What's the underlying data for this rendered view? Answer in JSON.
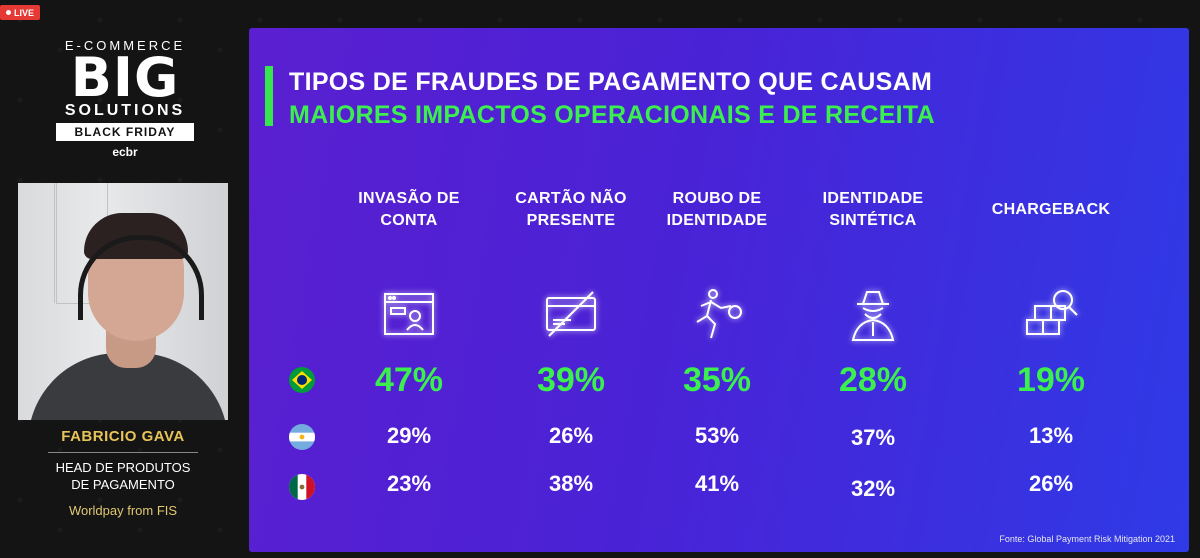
{
  "live_badge": "LIVE",
  "logo": {
    "line1": "E-COMMERCE",
    "line2": "BIG",
    "line3": "SOLUTIONS",
    "line4": "BLACK FRIDAY",
    "line5": "ecbr"
  },
  "speaker": {
    "name": "FABRICIO GAVA",
    "role_line1": "HEAD DE PRODUTOS",
    "role_line2": "DE PAGAMENTO",
    "company": "Worldpay from FIS"
  },
  "slide": {
    "title_line1": "TIPOS DE FRAUDES DE PAGAMENTO QUE CAUSAM",
    "title_line2": "MAIORES IMPACTOS OPERACIONAIS E DE RECEITA",
    "source": "Fonte: Global Payment Risk Mitigation 2021",
    "columns": [
      {
        "h1": "INVASÃO DE",
        "h2": "CONTA",
        "icon": "account-takeover-icon",
        "br": "47%",
        "ar": "29%",
        "mx": "23%"
      },
      {
        "h1": "CARTÃO NÃO",
        "h2": "PRESENTE",
        "icon": "card-not-present-icon",
        "br": "39%",
        "ar": "26%",
        "mx": "38%"
      },
      {
        "h1": "ROUBO DE",
        "h2": "IDENTIDADE",
        "icon": "thief-running-icon",
        "br": "35%",
        "ar": "53%",
        "mx": "41%"
      },
      {
        "h1": "IDENTIDADE",
        "h2": "SINTÉTICA",
        "icon": "spy-icon",
        "br": "28%",
        "ar": "37%",
        "mx": "32%"
      },
      {
        "h1": "CHARGEBACK",
        "h2": "",
        "icon": "boxes-search-icon",
        "br": "19%",
        "ar": "13%",
        "mx": "26%"
      }
    ],
    "flags": {
      "brazil": "brazil-flag-icon",
      "argentina": "argentina-flag-icon",
      "mexico": "mexico-flag-icon"
    },
    "colors": {
      "accent_green": "#3bf04e",
      "slide_purple": "#5a1fd0",
      "slide_blue": "#2f3ae6",
      "speaker_gold": "#e8c458"
    }
  }
}
